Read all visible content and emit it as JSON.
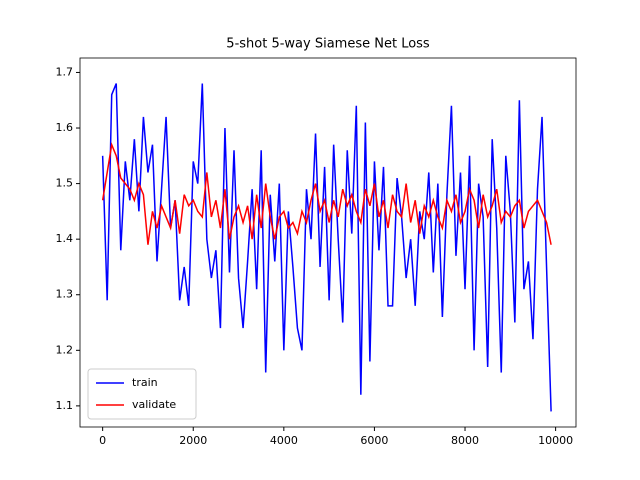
{
  "chart_data": {
    "type": "line",
    "title": "5-shot 5-way Siamese Net Loss",
    "x": [
      0,
      100,
      200,
      300,
      400,
      500,
      600,
      700,
      800,
      900,
      1000,
      1100,
      1200,
      1300,
      1400,
      1500,
      1600,
      1700,
      1800,
      1900,
      2000,
      2100,
      2200,
      2300,
      2400,
      2500,
      2600,
      2700,
      2800,
      2900,
      3000,
      3100,
      3200,
      3300,
      3400,
      3500,
      3600,
      3700,
      3800,
      3900,
      4000,
      4100,
      4200,
      4300,
      4400,
      4500,
      4600,
      4700,
      4800,
      4900,
      5000,
      5100,
      5200,
      5300,
      5400,
      5500,
      5600,
      5700,
      5800,
      5900,
      6000,
      6100,
      6200,
      6300,
      6400,
      6500,
      6600,
      6700,
      6800,
      6900,
      7000,
      7100,
      7200,
      7300,
      7400,
      7500,
      7600,
      7700,
      7800,
      7900,
      8000,
      8100,
      8200,
      8300,
      8400,
      8500,
      8600,
      8700,
      8800,
      8900,
      9000,
      9100,
      9200,
      9300,
      9400,
      9500,
      9600,
      9700,
      9800,
      9900
    ],
    "series": [
      {
        "name": "train",
        "color": "#0000ff",
        "values": [
          1.55,
          1.29,
          1.66,
          1.68,
          1.38,
          1.54,
          1.47,
          1.58,
          1.45,
          1.62,
          1.52,
          1.57,
          1.36,
          1.49,
          1.62,
          1.42,
          1.47,
          1.29,
          1.35,
          1.28,
          1.54,
          1.5,
          1.68,
          1.4,
          1.33,
          1.38,
          1.24,
          1.6,
          1.34,
          1.56,
          1.33,
          1.24,
          1.36,
          1.49,
          1.31,
          1.56,
          1.16,
          1.48,
          1.36,
          1.5,
          1.2,
          1.45,
          1.35,
          1.24,
          1.2,
          1.49,
          1.4,
          1.59,
          1.35,
          1.53,
          1.29,
          1.57,
          1.4,
          1.25,
          1.56,
          1.41,
          1.64,
          1.12,
          1.61,
          1.18,
          1.54,
          1.38,
          1.53,
          1.28,
          1.28,
          1.51,
          1.44,
          1.33,
          1.4,
          1.28,
          1.45,
          1.4,
          1.52,
          1.34,
          1.5,
          1.26,
          1.48,
          1.64,
          1.37,
          1.52,
          1.31,
          1.55,
          1.2,
          1.5,
          1.44,
          1.17,
          1.58,
          1.42,
          1.16,
          1.55,
          1.45,
          1.25,
          1.65,
          1.31,
          1.36,
          1.22,
          1.49,
          1.62,
          1.35,
          1.09
        ]
      },
      {
        "name": "validate",
        "color": "#ff0000",
        "values": [
          1.47,
          1.52,
          1.57,
          1.55,
          1.51,
          1.5,
          1.49,
          1.47,
          1.5,
          1.48,
          1.39,
          1.45,
          1.42,
          1.46,
          1.44,
          1.42,
          1.47,
          1.41,
          1.48,
          1.46,
          1.47,
          1.45,
          1.44,
          1.52,
          1.44,
          1.47,
          1.42,
          1.49,
          1.4,
          1.44,
          1.46,
          1.43,
          1.46,
          1.4,
          1.48,
          1.42,
          1.5,
          1.44,
          1.4,
          1.44,
          1.45,
          1.42,
          1.43,
          1.41,
          1.45,
          1.43,
          1.47,
          1.5,
          1.45,
          1.47,
          1.43,
          1.47,
          1.44,
          1.49,
          1.46,
          1.48,
          1.45,
          1.43,
          1.49,
          1.46,
          1.5,
          1.44,
          1.47,
          1.42,
          1.48,
          1.45,
          1.44,
          1.5,
          1.43,
          1.47,
          1.41,
          1.46,
          1.44,
          1.47,
          1.44,
          1.42,
          1.47,
          1.45,
          1.48,
          1.43,
          1.45,
          1.49,
          1.47,
          1.42,
          1.48,
          1.44,
          1.46,
          1.49,
          1.43,
          1.45,
          1.44,
          1.46,
          1.47,
          1.42,
          1.45,
          1.46,
          1.47,
          1.45,
          1.43,
          1.39
        ]
      }
    ],
    "xlim": [
      -500,
      10450
    ],
    "ylim": [
      1.062,
      1.726
    ],
    "xticks": [
      0,
      2000,
      4000,
      6000,
      8000,
      10000
    ],
    "yticks": [
      1.1,
      1.2,
      1.3,
      1.4,
      1.5,
      1.6,
      1.7
    ],
    "legend": "lower left"
  }
}
